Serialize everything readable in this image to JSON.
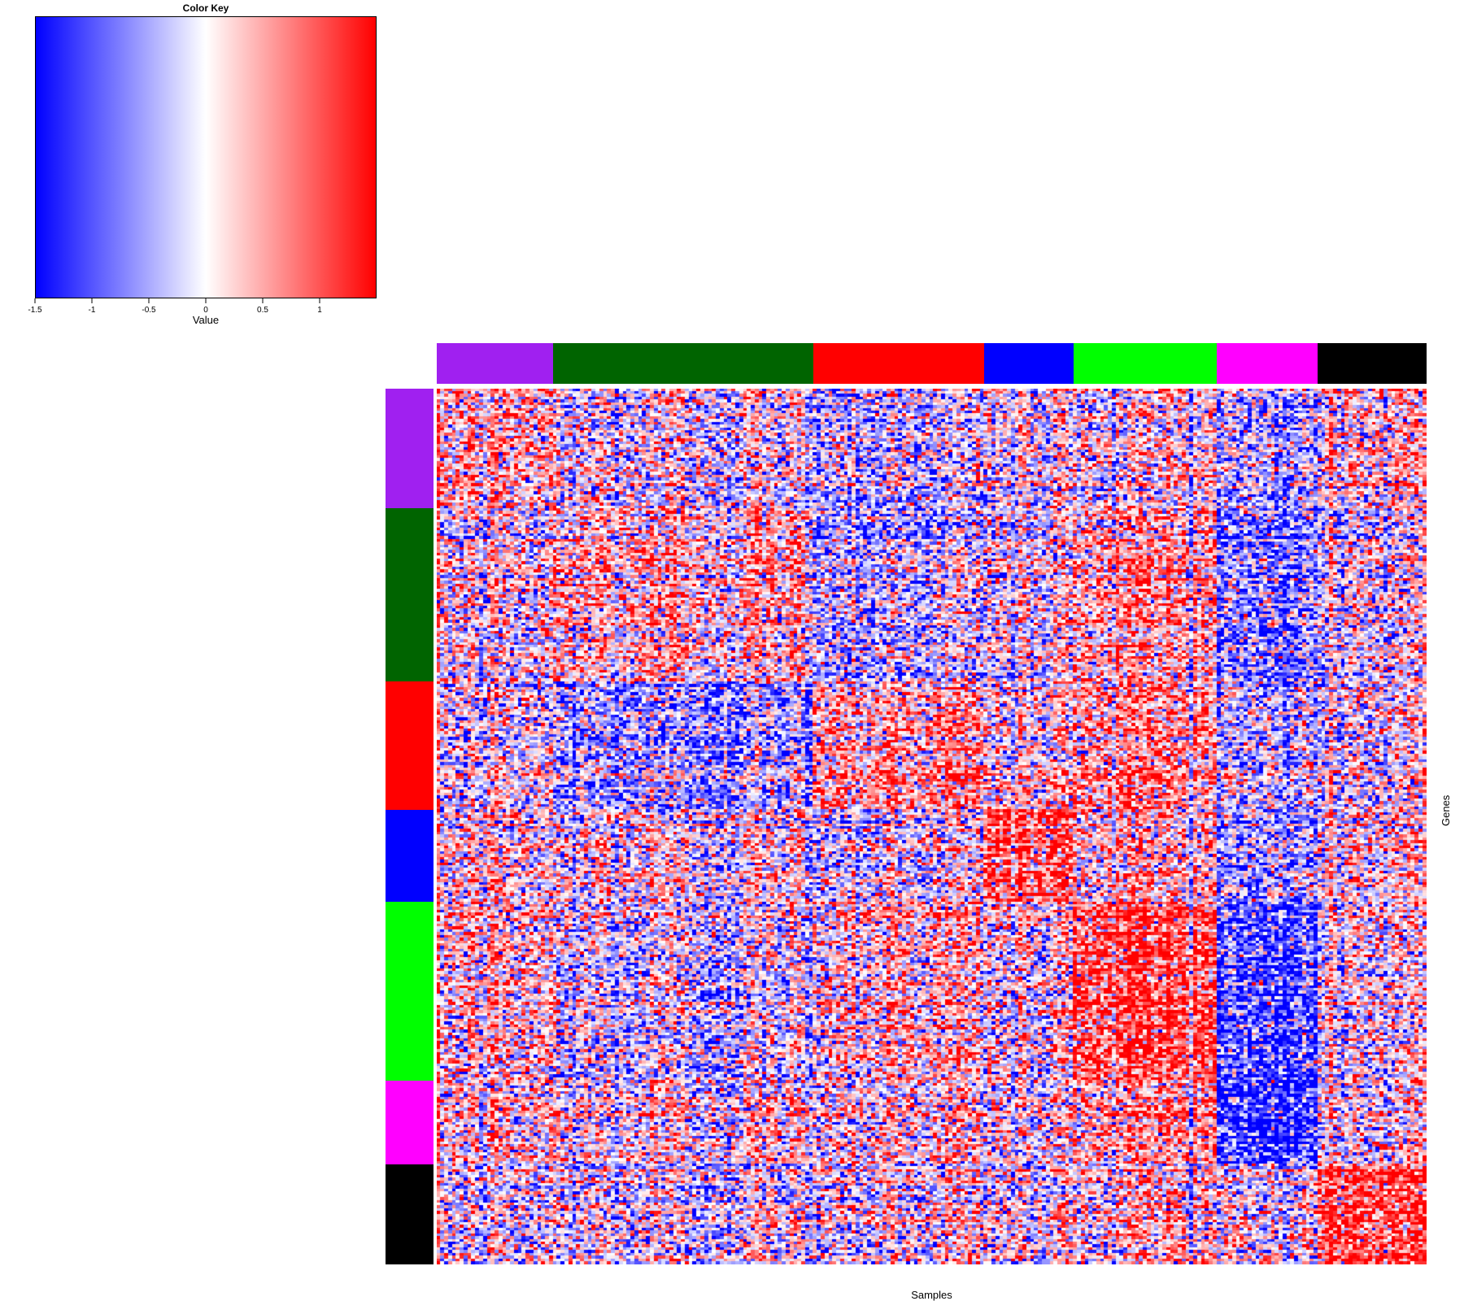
{
  "chart_data": {
    "type": "heatmap",
    "title": "",
    "xlabel": "Samples",
    "ylabel": "Genes",
    "color_key": {
      "title": "Color Key",
      "label": "Value",
      "range": [
        -1.5,
        1.5
      ],
      "ticks": [
        "-1.5",
        "-1",
        "-0.5",
        "0",
        "0.5",
        "1"
      ],
      "tick_values": [
        -1.5,
        -1,
        -0.5,
        0,
        0.5,
        1
      ],
      "colors": [
        "#0000ff",
        "#ffffff",
        "#ff0000"
      ]
    },
    "cluster_colors": [
      "#a020f0",
      "#006400",
      "#ff0000",
      "#0000ff",
      "#00ff00",
      "#ff00ff",
      "#000000"
    ],
    "column_groups": [
      {
        "color": "#a020f0",
        "count": 30
      },
      {
        "color": "#006400",
        "count": 67
      },
      {
        "color": "#ff0000",
        "count": 44
      },
      {
        "color": "#0000ff",
        "count": 23
      },
      {
        "color": "#00ff00",
        "count": 37
      },
      {
        "color": "#ff00ff",
        "count": 26
      },
      {
        "color": "#000000",
        "count": 28
      }
    ],
    "row_groups": [
      {
        "color": "#a020f0",
        "count": 43
      },
      {
        "color": "#006400",
        "count": 62
      },
      {
        "color": "#ff0000",
        "count": 46
      },
      {
        "color": "#0000ff",
        "count": 33
      },
      {
        "color": "#00ff00",
        "count": 64
      },
      {
        "color": "#ff00ff",
        "count": 30
      },
      {
        "color": "#000000",
        "count": 36
      }
    ],
    "block_means": [
      [
        0.3,
        -0.1,
        -0.3,
        -0.1,
        0.1,
        -0.5,
        0.2
      ],
      [
        0.0,
        0.3,
        -0.3,
        -0.1,
        0.5,
        -0.8,
        -0.1
      ],
      [
        -0.1,
        -0.6,
        0.5,
        0.0,
        0.6,
        -0.4,
        0.0
      ],
      [
        0.1,
        0.0,
        -0.1,
        1.0,
        0.3,
        -0.6,
        0.1
      ],
      [
        0.2,
        -0.2,
        0.3,
        0.0,
        1.1,
        -1.1,
        0.0
      ],
      [
        0.2,
        0.1,
        0.2,
        0.0,
        0.6,
        -1.4,
        0.1
      ],
      [
        -0.2,
        -0.2,
        0.0,
        -0.1,
        0.2,
        -0.1,
        1.0
      ]
    ],
    "noise_sd": 0.85,
    "value_range": [
      -1.5,
      1.5
    ],
    "legend_position": "top-left"
  }
}
